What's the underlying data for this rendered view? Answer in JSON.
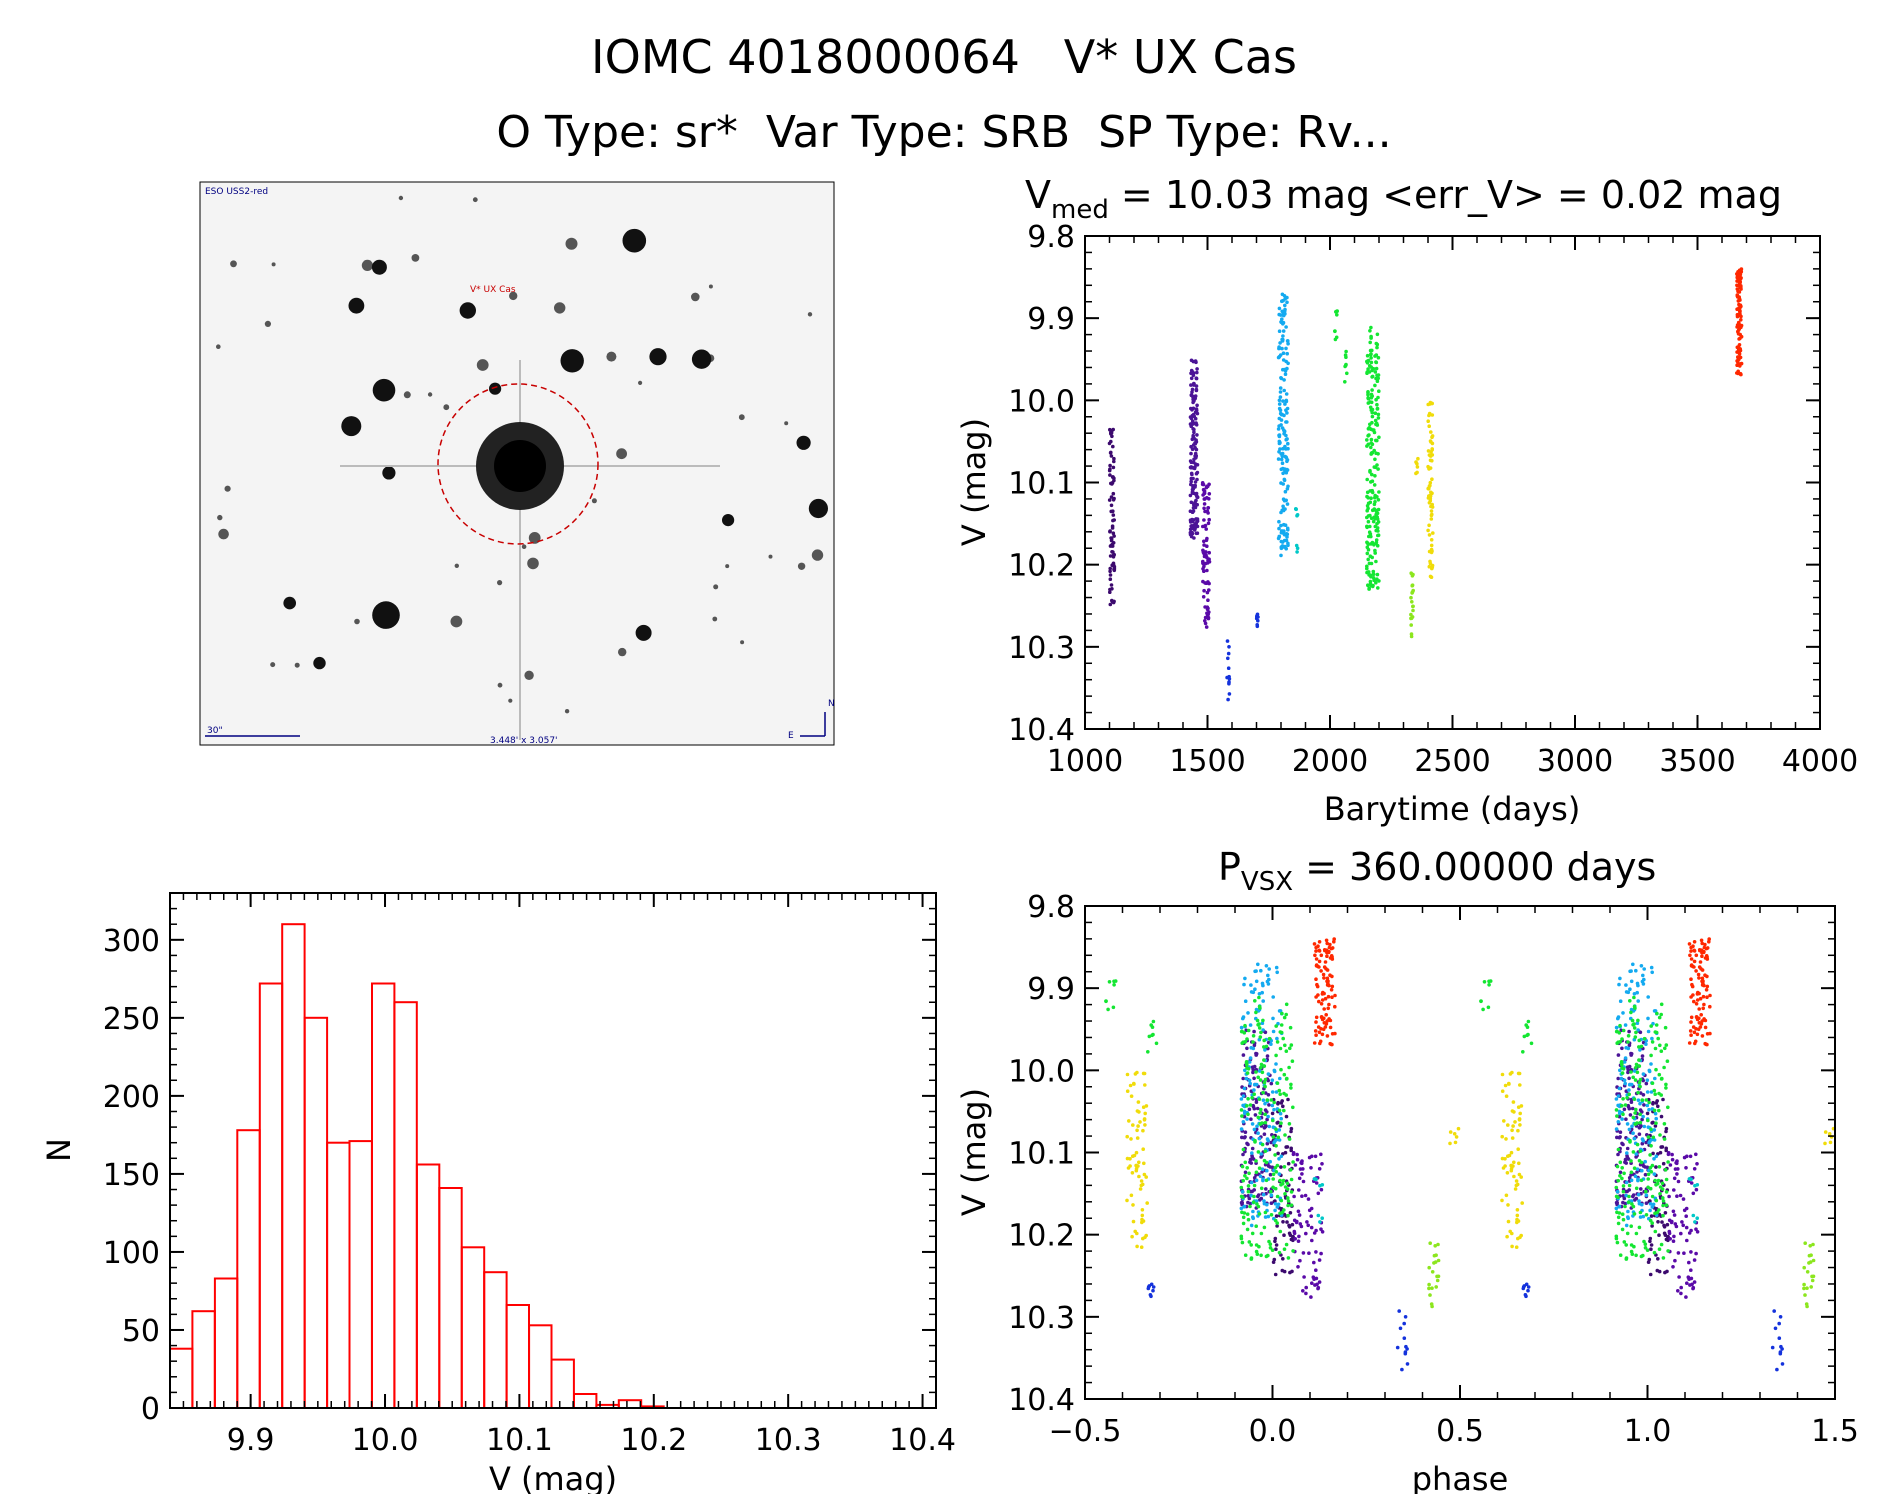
{
  "header": {
    "title": "IOMC 4018000064   V* UX Cas",
    "subtitle": "O Type: sr*  Var Type: SRB  SP Type: Rv..."
  },
  "sky_image": {
    "survey_label": "ESO USS2-red",
    "target_label": "V* UX Cas",
    "scale_label": "30\"",
    "size_label": "3.448' x 3.057'",
    "north_label": "N",
    "east_label": "E"
  },
  "colors": {
    "histogram": "#ff0000",
    "seasons": [
      "#3c0a6e",
      "#4b1496",
      "#5a0aa8",
      "#1432dc",
      "#14aaf0",
      "#00c8c8",
      "#14e632",
      "#8ce61e",
      "#f0dc0a",
      "#f08c00",
      "#ff2800"
    ]
  },
  "chart_data": [
    {
      "id": "lightcurve",
      "type": "scatter",
      "title_main": "V",
      "title_sub": "med",
      "title_rest": " = 10.03 mag <err_V> = 0.02 mag",
      "xlabel": "Barytime (days)",
      "ylabel": "V (mag)",
      "xlim": [
        1000,
        4000
      ],
      "ylim": [
        9.8,
        10.4
      ],
      "y_inverted": true,
      "xticks": [
        "1000",
        "1500",
        "2000",
        "2500",
        "3000",
        "3500",
        "4000"
      ],
      "yticks": [
        "9.8",
        "9.9",
        "10.0",
        "10.1",
        "10.2",
        "10.3",
        "10.4"
      ],
      "seasons": [
        {
          "t0": 1100,
          "t1": 1120,
          "vmin": 10.03,
          "vmax": 10.25,
          "n": 80,
          "color": 0
        },
        {
          "t0": 1430,
          "t1": 1460,
          "vmin": 9.95,
          "vmax": 10.17,
          "n": 160,
          "color": 1
        },
        {
          "t0": 1480,
          "t1": 1510,
          "vmin": 10.1,
          "vmax": 10.28,
          "n": 80,
          "color": 2
        },
        {
          "t0": 1580,
          "t1": 1590,
          "vmin": 10.29,
          "vmax": 10.37,
          "n": 12,
          "color": 3
        },
        {
          "t0": 1700,
          "t1": 1710,
          "vmin": 10.26,
          "vmax": 10.28,
          "n": 8,
          "color": 3
        },
        {
          "t0": 1790,
          "t1": 1830,
          "vmin": 9.87,
          "vmax": 10.19,
          "n": 170,
          "color": 4
        },
        {
          "t0": 1860,
          "t1": 1870,
          "vmin": 10.13,
          "vmax": 10.19,
          "n": 8,
          "color": 5
        },
        {
          "t0": 2020,
          "t1": 2030,
          "vmin": 9.89,
          "vmax": 9.93,
          "n": 8,
          "color": 6
        },
        {
          "t0": 2060,
          "t1": 2070,
          "vmin": 9.94,
          "vmax": 9.98,
          "n": 8,
          "color": 6
        },
        {
          "t0": 2150,
          "t1": 2200,
          "vmin": 9.91,
          "vmax": 10.23,
          "n": 210,
          "color": 6
        },
        {
          "t0": 2330,
          "t1": 2340,
          "vmin": 10.2,
          "vmax": 10.29,
          "n": 20,
          "color": 7
        },
        {
          "t0": 2350,
          "t1": 2360,
          "vmin": 10.07,
          "vmax": 10.09,
          "n": 6,
          "color": 8
        },
        {
          "t0": 2400,
          "t1": 2420,
          "vmin": 10.0,
          "vmax": 10.22,
          "n": 70,
          "color": 8
        },
        {
          "t0": 3660,
          "t1": 3680,
          "vmin": 9.84,
          "vmax": 9.97,
          "n": 100,
          "color": 10
        }
      ]
    },
    {
      "id": "histogram",
      "type": "bar",
      "xlabel": "V (mag)",
      "ylabel": "N",
      "xlim": [
        9.84,
        10.41
      ],
      "ylim": [
        0,
        330
      ],
      "xticks": [
        "9.9",
        "10.0",
        "10.1",
        "10.2",
        "10.3",
        "10.4"
      ],
      "yticks": [
        "0",
        "50",
        "100",
        "150",
        "200",
        "250",
        "300"
      ],
      "bin_start": 9.84,
      "bin_width": 0.0167,
      "values": [
        38,
        62,
        83,
        178,
        272,
        310,
        250,
        170,
        171,
        272,
        260,
        156,
        141,
        103,
        87,
        66,
        53,
        31,
        9,
        2,
        5,
        1
      ]
    },
    {
      "id": "phased",
      "type": "scatter",
      "title_main": "P",
      "title_sub": "VSX",
      "title_rest": " = 360.00000 days",
      "xlabel": "phase",
      "ylabel": "V (mag)",
      "xlim": [
        -0.5,
        1.5
      ],
      "ylim": [
        9.8,
        10.4
      ],
      "y_inverted": true,
      "period_days": 360.0,
      "xticks": [
        "−0.5",
        "0.0",
        "0.5",
        "1.0",
        "1.5"
      ],
      "yticks": [
        "9.8",
        "9.9",
        "10.0",
        "10.1",
        "10.2",
        "10.3",
        "10.4"
      ]
    }
  ]
}
